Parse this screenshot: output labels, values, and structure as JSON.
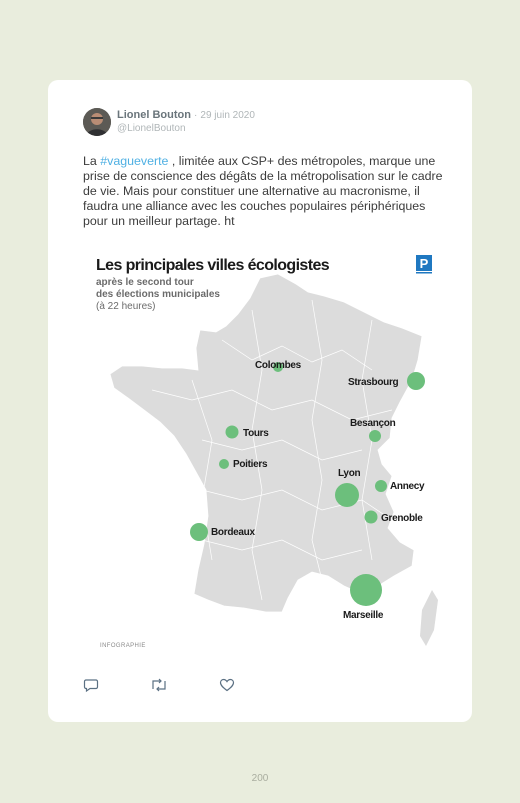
{
  "tweet": {
    "author": "Lionel Bouton",
    "separator": "·",
    "date": "29 juin 2020",
    "handle": "@LionelBouton",
    "text_prefix": "La ",
    "hashtag": "#vagueverte",
    "text_rest": " , limitée aux CSP+ des métropoles, marque une prise de conscience des dégâts de la métropolisation sur le cadre de vie. Mais pour constituer une alternative au macronisme, il faudra une alliance avec les couches populaires périphériques pour un meilleur partage. ht"
  },
  "infographic": {
    "title": "Les principales villes écologistes",
    "subtitle_line1": "après le second tour",
    "subtitle_line2": "des élections municipales",
    "note": "(à 22 heures)",
    "logo_letter": "P",
    "credit": "INFOGRAPHIE",
    "map_fill": "#dcdcdc",
    "dot_color": "#6cbf7c",
    "cities": [
      "Colombes",
      "Strasbourg",
      "Besançon",
      "Tours",
      "Poitiers",
      "Lyon",
      "Annecy",
      "Grenoble",
      "Bordeaux",
      "Marseille"
    ]
  },
  "actions": {
    "reply": "reply-icon",
    "retweet": "retweet-icon",
    "like": "heart-icon"
  },
  "page_number": "200"
}
